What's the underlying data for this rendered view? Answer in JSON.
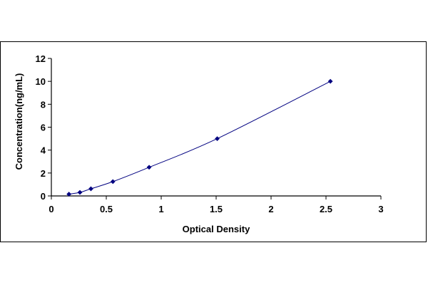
{
  "chart_data": {
    "type": "scatter",
    "title": "",
    "xlabel": "Optical Density",
    "ylabel": "Concentration(ng/mL)",
    "xlim": [
      0,
      3
    ],
    "ylim": [
      0,
      12
    ],
    "x_ticks": [
      "0",
      "0.5",
      "1",
      "1.5",
      "2",
      "2.5",
      "3"
    ],
    "y_ticks": [
      "0",
      "2",
      "4",
      "6",
      "8",
      "10",
      "12"
    ],
    "grid": false,
    "legend": "none",
    "series": [
      {
        "x": [
          0.16,
          0.26,
          0.36,
          0.56,
          0.89,
          1.51,
          2.54
        ],
        "y": [
          0.156,
          0.312,
          0.625,
          1.25,
          2.5,
          5,
          10
        ],
        "marker_color": "#000080",
        "line_color": "#000080",
        "fit_line": true
      }
    ]
  }
}
